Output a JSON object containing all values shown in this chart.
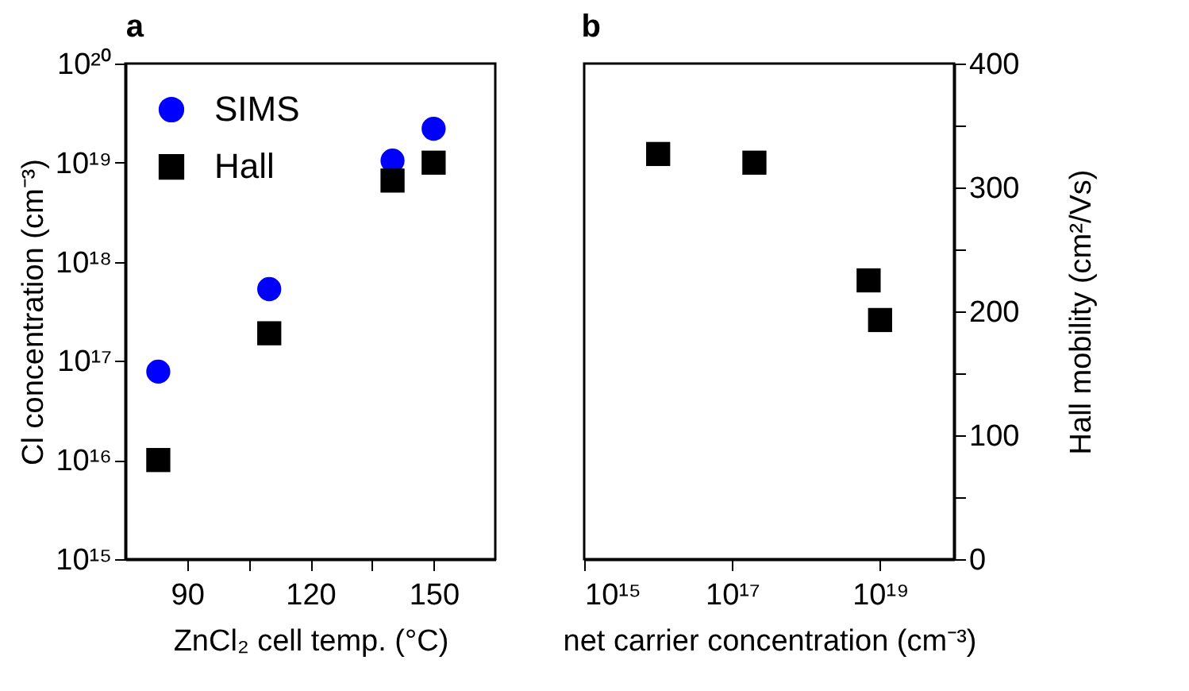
{
  "chart_data": [
    {
      "type": "scatter",
      "title": "a",
      "xlabel": "ZnCl₂ cell temp. (°C)",
      "ylabel": "Cl concentration (cm⁻³)",
      "log": "y",
      "xlim": [
        75,
        165
      ],
      "xticks": [
        90,
        {
          "value": 105,
          "label": null
        },
        120,
        {
          "value": 135,
          "label": null
        },
        150
      ],
      "ylim": [
        1000000000000000.0,
        1e+20
      ],
      "yticks": [
        {
          "value": 1000000000000000.0,
          "label": "10¹⁵"
        },
        {
          "value": 1e+16,
          "label": "10¹⁶"
        },
        {
          "value": 1e+17,
          "label": "10¹⁷"
        },
        {
          "value": 1e+18,
          "label": "10¹⁸"
        },
        {
          "value": 1e+19,
          "label": "10¹⁹"
        },
        {
          "value": 1e+20,
          "label": "10²⁰"
        }
      ],
      "grid": false,
      "legend": "top left",
      "series": [
        {
          "name": "SIMS",
          "color": "#0000ff",
          "marker": "circle",
          "x": [
            83,
            110,
            140,
            150
          ],
          "values": [
            7.8e+16,
            5.3e+17,
            1.05e+19,
            2.2e+19
          ]
        },
        {
          "name": "Hall",
          "color": "#000000",
          "marker": "square",
          "x": [
            83,
            110,
            140,
            150
          ],
          "values": [
            1e+16,
            1.9e+17,
            6.6e+18,
            1e+19
          ]
        }
      ]
    },
    {
      "type": "scatter",
      "title": "b",
      "xlabel": "net carrier concentration (cm⁻³)",
      "y2label": "Hall mobility (cm²/Vs)",
      "log": "x",
      "xlim": [
        1000000000000000.0,
        1e+20
      ],
      "xticks": [
        {
          "value": 1000000000000000.0,
          "label": "10¹⁵"
        },
        {
          "value": 1e+17,
          "label": "10¹⁷"
        },
        {
          "value": 1e+19,
          "label": "10¹⁹"
        }
      ],
      "y2lim": [
        0,
        400
      ],
      "y2ticks": [
        0,
        {
          "value": 50,
          "label": null
        },
        100,
        {
          "value": 150,
          "label": null
        },
        200,
        {
          "value": 250,
          "label": null
        },
        300,
        {
          "value": 350,
          "label": null
        },
        400
      ],
      "grid": false,
      "series": [
        {
          "color": "#000000",
          "marker": "square",
          "axis": "y2",
          "x": [
            1e+16,
            2e+17,
            7e+18,
            1e+19
          ],
          "values": [
            327,
            320,
            225,
            193
          ]
        }
      ]
    }
  ]
}
